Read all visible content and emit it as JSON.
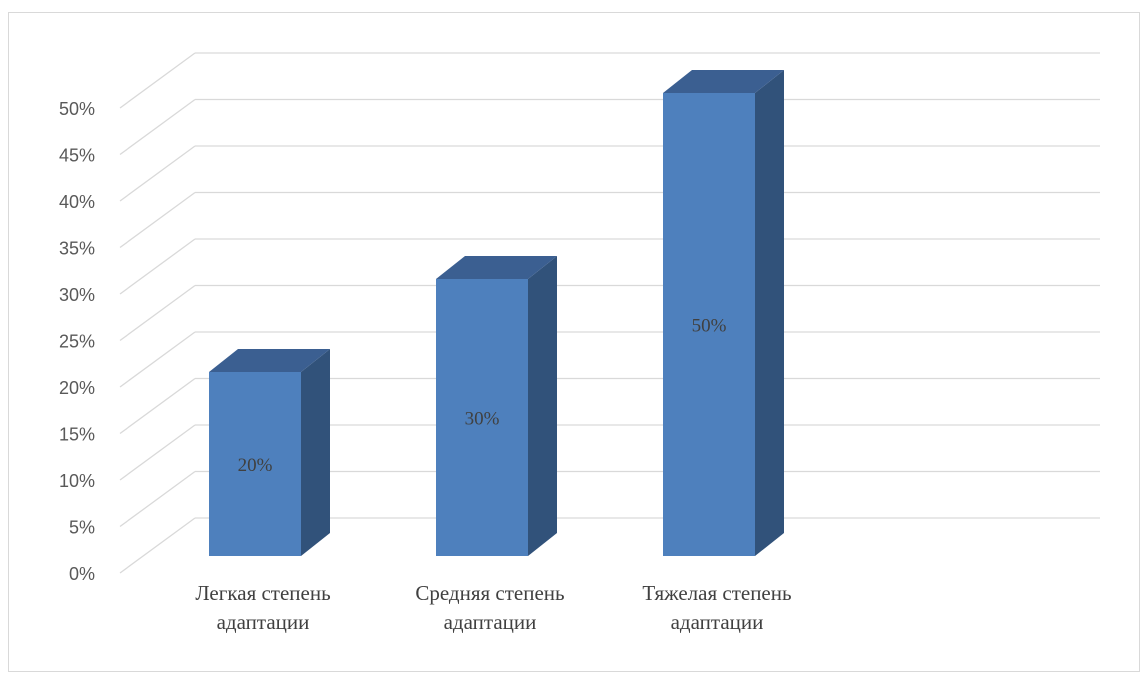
{
  "chart_data": {
    "type": "bar",
    "style": "3d-column",
    "categories": [
      [
        "Легкая степень",
        "адаптации"
      ],
      [
        "Средняя степень",
        "адаптации"
      ],
      [
        "Тяжелая степень",
        "адаптации"
      ]
    ],
    "values": [
      20,
      30,
      50
    ],
    "data_labels": [
      "20%",
      "30%",
      "50%"
    ],
    "y_ticks": [
      "0%",
      "5%",
      "10%",
      "15%",
      "20%",
      "25%",
      "30%",
      "35%",
      "40%",
      "45%",
      "50%"
    ],
    "ylim": [
      0,
      50
    ],
    "y_step": 5,
    "grid": true,
    "legend": "none",
    "colors": {
      "bar_front": "#4e80bd",
      "bar_side": "#31527a",
      "bar_top": "#3b5f91",
      "grid": "#d9d9d9"
    }
  }
}
